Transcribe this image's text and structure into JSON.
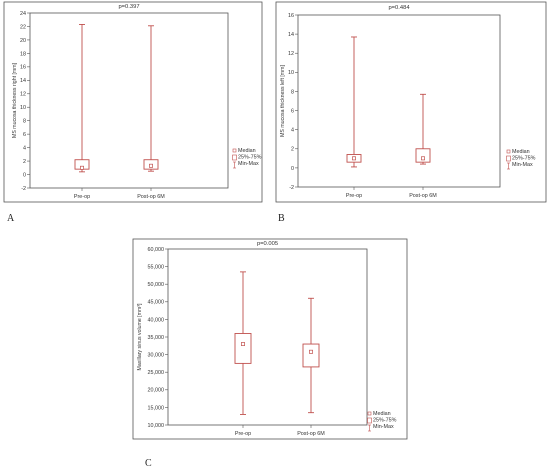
{
  "colors": {
    "series": "#c0504d",
    "axis": "#555555",
    "significant": "#e0302a",
    "text": "#333333"
  },
  "legend_items": [
    "Median",
    "25%-75%",
    "Min-Max"
  ],
  "chart_data": [
    {
      "type": "box",
      "panel": "A",
      "title": "p=0.397",
      "ylabel": "MS mucosa thickness right [mm]",
      "xlabel": "",
      "ylim": [
        -2,
        24
      ],
      "yticks": [
        "-2",
        "0",
        "2",
        "4",
        "6",
        "8",
        "10",
        "12",
        "14",
        "16",
        "18",
        "20",
        "22",
        "24"
      ],
      "categories": [
        "Pre-op",
        "Post-op 6M"
      ],
      "stats": [
        {
          "min": 0.4,
          "q1": 0.8,
          "median": 1.0,
          "q3": 2.2,
          "max": 22.3
        },
        {
          "min": 0.5,
          "q1": 0.8,
          "median": 1.3,
          "q3": 2.2,
          "max": 22.1
        }
      ]
    },
    {
      "type": "box",
      "panel": "B",
      "title": "p=0.484",
      "ylabel": "MS mucosa thickness left [mm]",
      "xlabel": "",
      "ylim": [
        -2,
        16
      ],
      "yticks": [
        "-2",
        "0",
        "2",
        "4",
        "6",
        "8",
        "10",
        "12",
        "14",
        "16"
      ],
      "categories": [
        "Pre-op",
        "Post-op 6M"
      ],
      "stats": [
        {
          "min": 0.1,
          "q1": 0.6,
          "median": 1.0,
          "q3": 1.4,
          "max": 13.7
        },
        {
          "min": 0.4,
          "q1": 0.6,
          "median": 1.0,
          "q3": 2.0,
          "max": 7.7
        }
      ]
    },
    {
      "type": "box",
      "panel": "C",
      "title": "p=0.005",
      "ylabel": "Maxillary sinus volume [mm³]",
      "xlabel": "",
      "ylim": [
        10000,
        60000
      ],
      "yticks": [
        "10,000",
        "15,000",
        "20,000",
        "25,000",
        "30,000",
        "35,000",
        "40,000",
        "45,000",
        "50,000",
        "55,000",
        "60,000"
      ],
      "categories": [
        "Pre-op",
        "Post-op 6M"
      ],
      "stats": [
        {
          "min": 13000,
          "q1": 27500,
          "median": 33000,
          "q3": 36000,
          "max": 53500
        },
        {
          "min": 13500,
          "q1": 26500,
          "median": 30800,
          "q3": 33000,
          "max": 46000
        }
      ]
    }
  ]
}
